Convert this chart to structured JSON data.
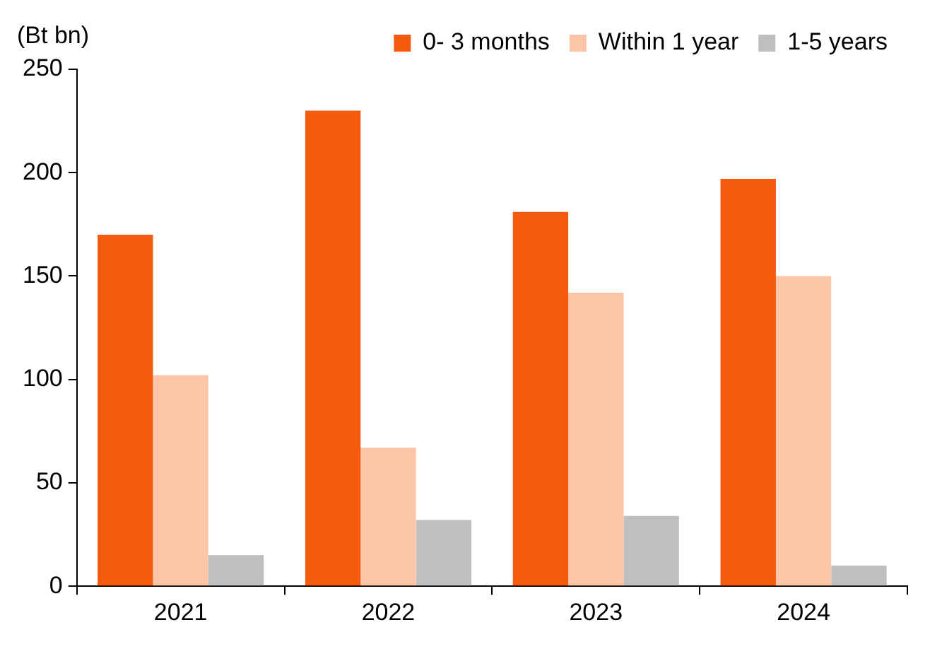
{
  "chart_data": {
    "type": "bar",
    "ylabel": "(Bt bn)",
    "categories": [
      "2021",
      "2022",
      "2023",
      "2024"
    ],
    "series": [
      {
        "name": "0- 3 months",
        "color": "#f55a0f",
        "values": [
          170,
          230,
          181,
          197
        ]
      },
      {
        "name": "Within 1 year",
        "color": "#fdc5a8",
        "values": [
          102,
          67,
          142,
          150
        ]
      },
      {
        "name": "1-5 years",
        "color": "#bfbfbf",
        "values": [
          15,
          32,
          34,
          10
        ]
      }
    ],
    "ylim": [
      0,
      250
    ],
    "yticks": [
      0,
      50,
      100,
      150,
      200,
      250
    ],
    "grid": false,
    "legend": "top right"
  }
}
